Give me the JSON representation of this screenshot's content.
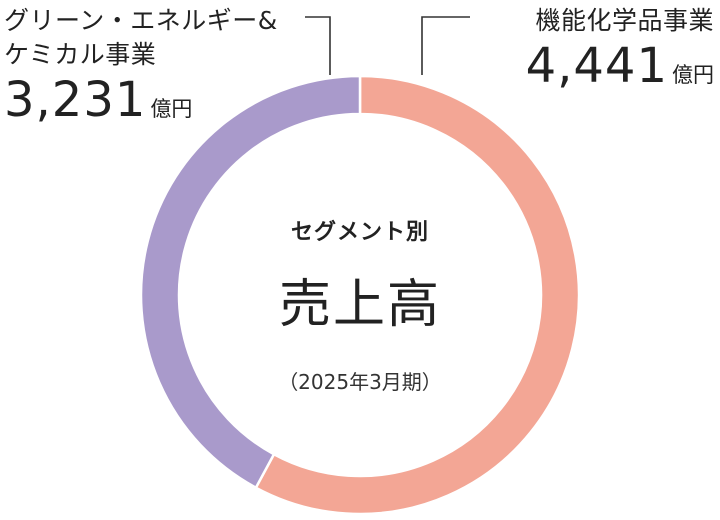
{
  "center": {
    "subtitle": "セグメント別",
    "title": "売上高",
    "period": "（2025年3月期）"
  },
  "segments": [
    {
      "name_line1": "グリーン・エネルギー&",
      "name_line2": "ケミカル事業",
      "value_text": "3,231",
      "unit": "億円"
    },
    {
      "name_line1": "機能化学品事業",
      "value_text": "4,441",
      "unit": "億円"
    }
  ],
  "chart_data": {
    "type": "pie",
    "donut": true,
    "title": "売上高",
    "subtitle": "セグメント別",
    "period": "（2025年3月期）",
    "unit": "億円",
    "categories": [
      "機能化学品事業",
      "グリーン・エネルギー&ケミカル事業"
    ],
    "values": [
      4441,
      3231
    ],
    "colors": [
      "#f3a695",
      "#a99acb"
    ]
  }
}
